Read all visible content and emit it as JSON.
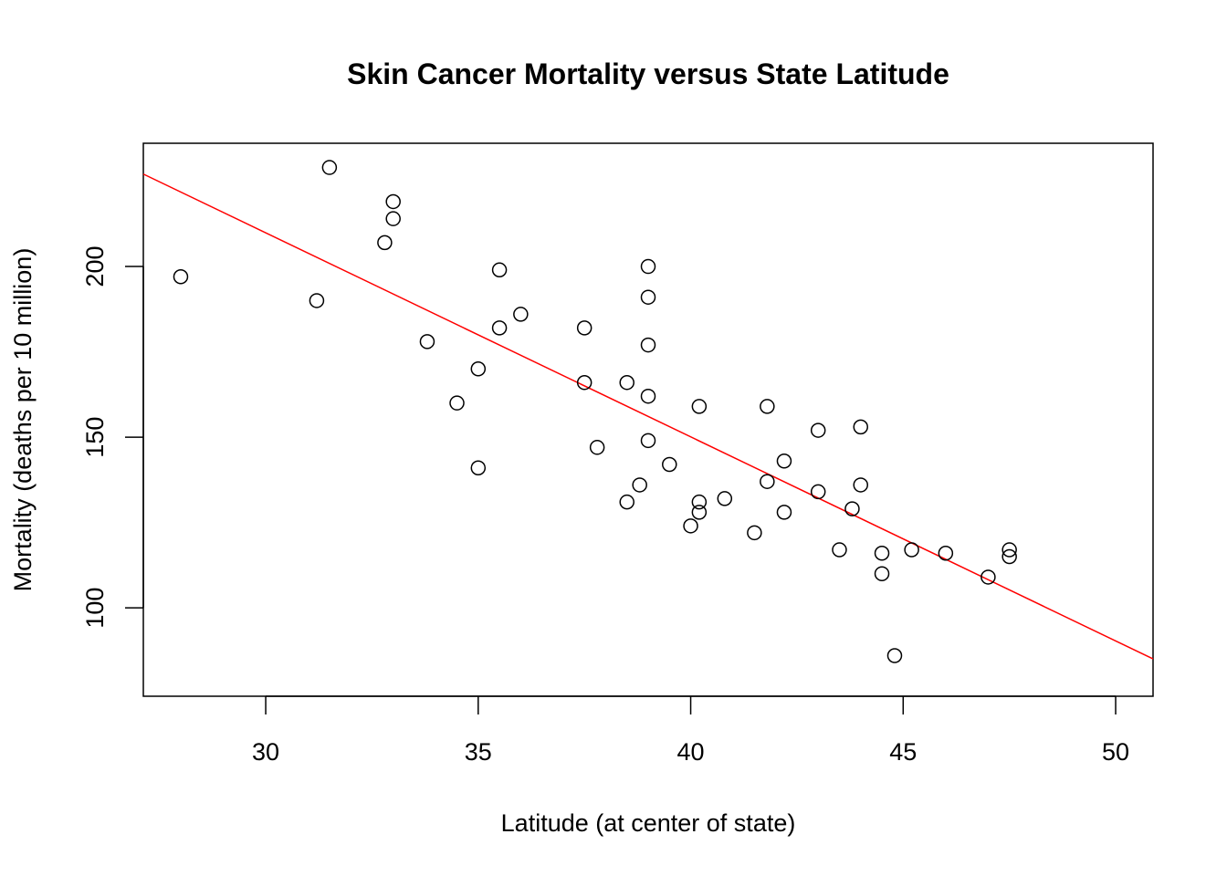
{
  "chart_data": {
    "type": "scatter",
    "title": "Skin Cancer Mortality versus State Latitude",
    "xlabel": "Latitude (at center of state)",
    "ylabel": "Mortality (deaths per 10 million)",
    "xlim": [
      27.12,
      50.88
    ],
    "ylim": [
      74.1,
      236.1
    ],
    "xticks": [
      30,
      35,
      40,
      45,
      50
    ],
    "yticks": [
      100,
      150,
      200
    ],
    "grid": false,
    "marker": "open-circle",
    "point_color": "#000000",
    "fit_line": {
      "intercept": 389.19,
      "slope": -5.9776,
      "color": "#ff0000"
    },
    "points": [
      [
        28.0,
        197
      ],
      [
        31.5,
        229
      ],
      [
        33.0,
        219
      ],
      [
        33.0,
        214
      ],
      [
        32.8,
        207
      ],
      [
        31.2,
        190
      ],
      [
        35.5,
        199
      ],
      [
        36.0,
        186
      ],
      [
        35.5,
        182
      ],
      [
        33.8,
        178
      ],
      [
        35.0,
        170
      ],
      [
        34.5,
        160
      ],
      [
        35.0,
        141
      ],
      [
        37.5,
        182
      ],
      [
        37.5,
        166
      ],
      [
        37.8,
        147
      ],
      [
        38.5,
        166
      ],
      [
        38.5,
        131
      ],
      [
        38.8,
        136
      ],
      [
        39.0,
        200
      ],
      [
        39.0,
        191
      ],
      [
        39.0,
        177
      ],
      [
        39.0,
        162
      ],
      [
        39.0,
        149
      ],
      [
        39.5,
        142
      ],
      [
        40.2,
        159
      ],
      [
        40.2,
        131
      ],
      [
        40.2,
        128
      ],
      [
        40.0,
        124
      ],
      [
        40.8,
        132
      ],
      [
        41.5,
        122
      ],
      [
        41.8,
        159
      ],
      [
        41.8,
        137
      ],
      [
        42.2,
        143
      ],
      [
        42.2,
        128
      ],
      [
        43.0,
        152
      ],
      [
        43.0,
        134
      ],
      [
        43.5,
        117
      ],
      [
        43.8,
        129
      ],
      [
        44.0,
        153
      ],
      [
        44.0,
        136
      ],
      [
        44.5,
        116
      ],
      [
        44.5,
        110
      ],
      [
        44.8,
        86
      ],
      [
        45.2,
        117
      ],
      [
        46.0,
        116
      ],
      [
        47.0,
        109
      ],
      [
        47.5,
        117
      ],
      [
        47.5,
        115
      ]
    ]
  }
}
